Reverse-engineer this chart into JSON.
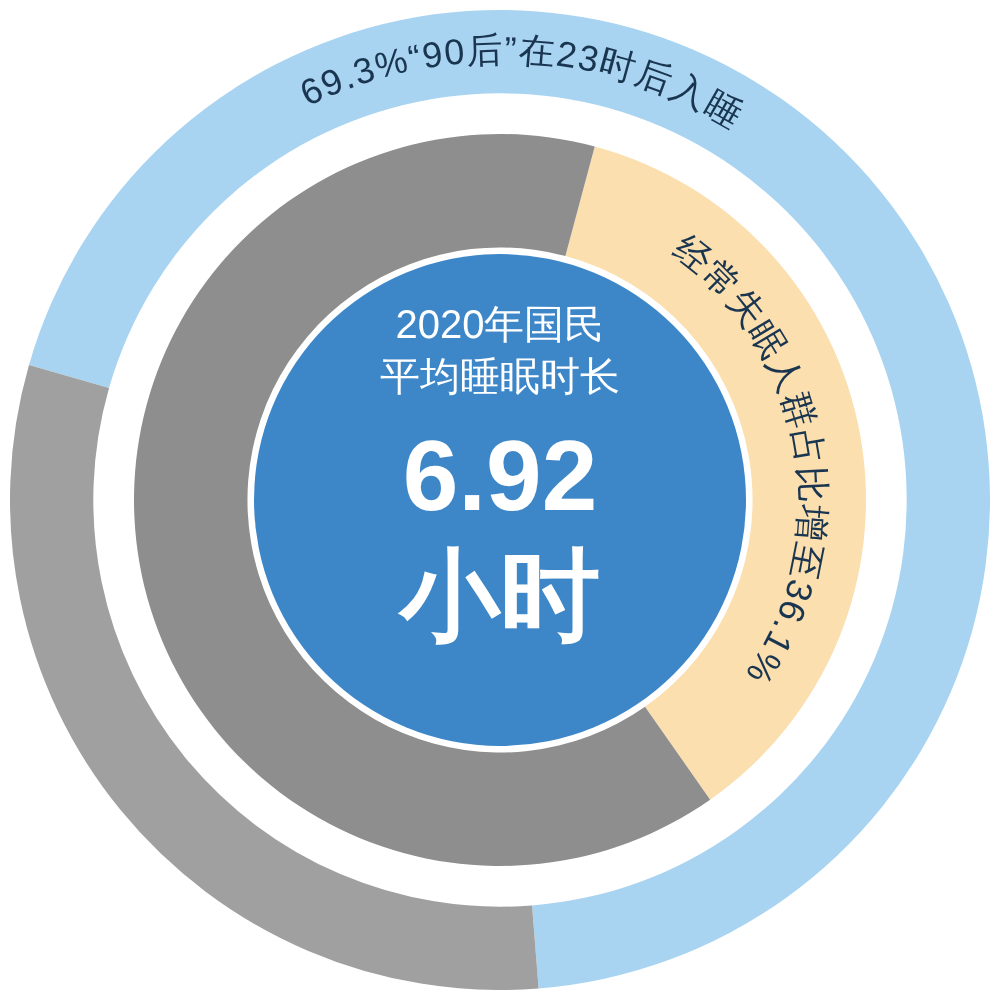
{
  "chart_data": {
    "type": "donut",
    "title": "2020年国民平均睡眠时长",
    "series": [
      {
        "values": [
          69.3,
          30.7
        ],
        "colors": [
          "#a8d4f2",
          "#a0a0a0"
        ]
      },
      {
        "values": [
          36.1,
          63.9
        ],
        "colors": [
          "#fbdfae",
          "#8e8e8e"
        ]
      }
    ],
    "annotations": [
      "6.92小时",
      "69.3%“90后”在23时后入睡",
      "经常失眠人群占比增至36.1%"
    ]
  }
}
